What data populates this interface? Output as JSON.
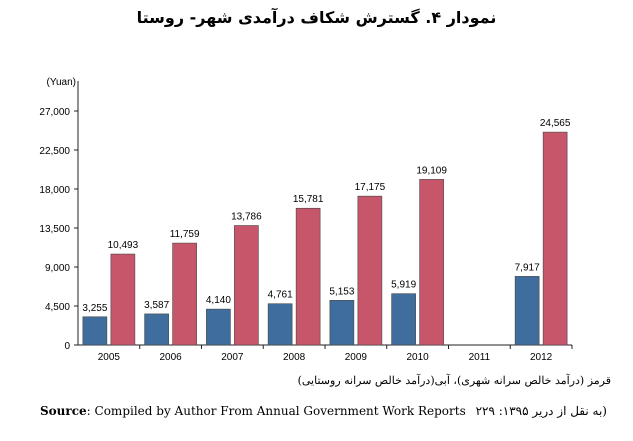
{
  "title": "نمودار ۴. گسترش شکاف درآمدی شهر- روستا",
  "caption": "قرمز (درآمد خالص سرانه شهری)، آبی(درآمد خالص سرانه روستایی)",
  "source": {
    "label": "Source",
    "text": ": Compiled by Author From Annual Government Work Reports",
    "citation": "(به نقل از دریر ۱۳۹۵: ۲۲۹"
  },
  "colors": {
    "blue": "#3f6e9e",
    "red": "#c7566a"
  },
  "chart_data": {
    "type": "bar",
    "unit_label": "(Yuan)",
    "categories": [
      "2005",
      "2006",
      "2007",
      "2008",
      "2009",
      "2010",
      "2011",
      "2012"
    ],
    "ylim": [
      0,
      27000
    ],
    "yticks": [
      0,
      4500,
      9000,
      13500,
      18000,
      22500,
      27000
    ],
    "ytick_labels": [
      "0",
      "4,500",
      "9,000",
      "13,500",
      "18,000",
      "22,500",
      "27,000"
    ],
    "grid": false,
    "series": [
      {
        "color": "#3f6e9e",
        "values": [
          3255,
          3587,
          4140,
          4761,
          5153,
          5919,
          null,
          7917
        ],
        "labels": [
          "3,255",
          "3,587",
          "4,140",
          "4,761",
          "5,153",
          "5,919",
          "",
          "7,917"
        ]
      },
      {
        "color": "#c7566a",
        "values": [
          10493,
          11759,
          13786,
          15781,
          17175,
          19109,
          null,
          24565
        ],
        "labels": [
          "10,493",
          "11,759",
          "13,786",
          "15,781",
          "17,175",
          "19,109",
          "",
          "24,565"
        ]
      }
    ]
  }
}
